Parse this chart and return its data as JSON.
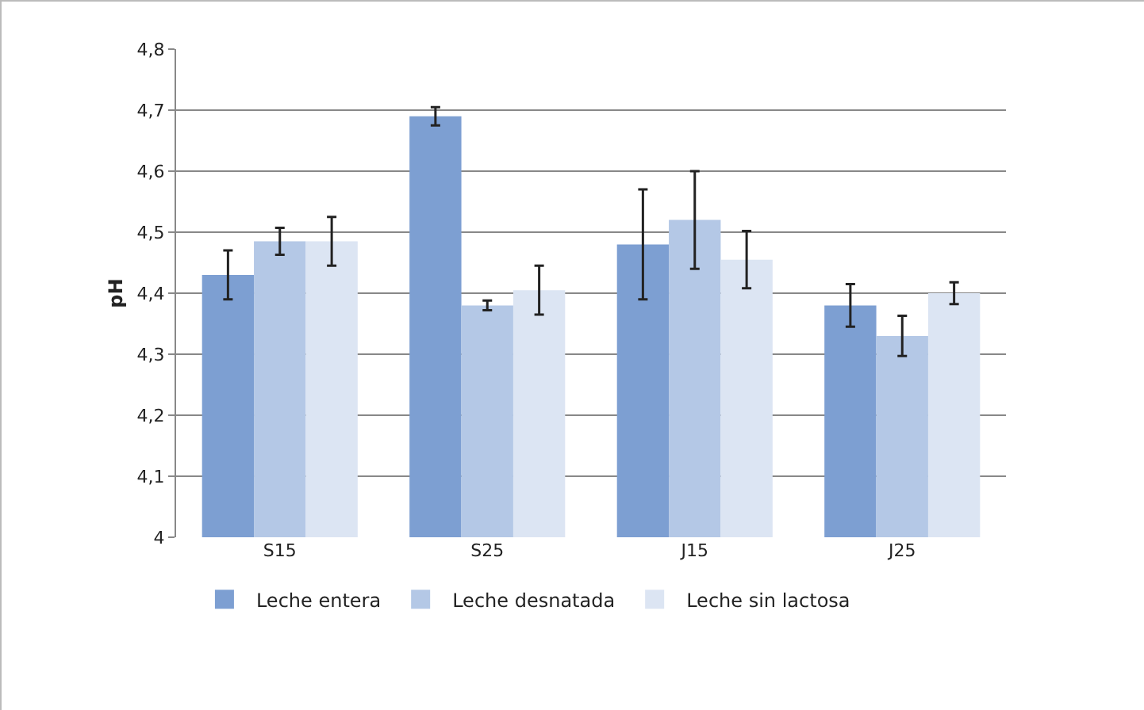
{
  "chart_data": {
    "type": "bar",
    "ylabel": "pH",
    "categories": [
      "S15",
      "S25",
      "J15",
      "J25"
    ],
    "series": [
      {
        "name": "Leche entera",
        "color": "#7d9fd2",
        "values": [
          4.43,
          4.69,
          4.48,
          4.38
        ],
        "errors": [
          0.04,
          0.015,
          0.09,
          0.035
        ]
      },
      {
        "name": "Leche desnatada",
        "color": "#b4c8e6",
        "values": [
          4.485,
          4.38,
          4.52,
          4.33
        ],
        "errors": [
          0.022,
          0.008,
          0.08,
          0.033
        ]
      },
      {
        "name": "Leche sin lactosa",
        "color": "#dce5f3",
        "values": [
          4.485,
          4.405,
          4.455,
          4.4
        ],
        "errors": [
          0.04,
          0.04,
          0.047,
          0.018
        ]
      }
    ],
    "ylim": [
      4,
      4.8
    ],
    "yticks": [
      {
        "value": 4,
        "label": "4"
      },
      {
        "value": 4.1,
        "label": "4,1"
      },
      {
        "value": 4.2,
        "label": "4,2"
      },
      {
        "value": 4.3,
        "label": "4,3"
      },
      {
        "value": 4.4,
        "label": "4,4"
      },
      {
        "value": 4.5,
        "label": "4,5"
      },
      {
        "value": 4.6,
        "label": "4,6"
      },
      {
        "value": 4.7,
        "label": "4,7"
      },
      {
        "value": 4.8,
        "label": "4,8"
      }
    ],
    "grid": "y",
    "legend": "bottom"
  }
}
